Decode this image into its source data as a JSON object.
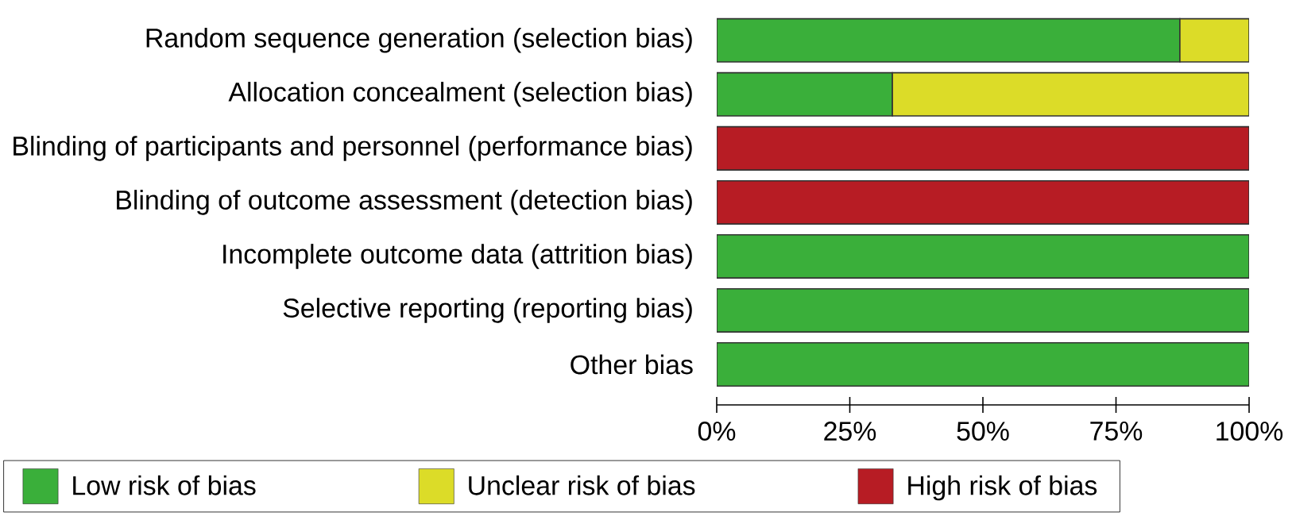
{
  "chart_data": {
    "type": "bar",
    "orientation": "horizontal",
    "stacked": true,
    "categories": [
      "Random sequence generation (selection bias)",
      "Allocation concealment (selection bias)",
      "Blinding of participants and personnel (performance bias)",
      "Blinding of outcome assessment (detection bias)",
      "Incomplete outcome data (attrition bias)",
      "Selective reporting (reporting bias)",
      "Other bias"
    ],
    "series": [
      {
        "name": "Low risk of bias",
        "color": "#3aaf3a",
        "values": [
          87,
          33,
          0,
          0,
          100,
          100,
          100
        ]
      },
      {
        "name": "Unclear risk of bias",
        "color": "#dcdc28",
        "values": [
          13,
          67,
          0,
          0,
          0,
          0,
          0
        ]
      },
      {
        "name": "High risk of bias",
        "color": "#b71c24",
        "values": [
          0,
          0,
          100,
          100,
          0,
          0,
          0
        ]
      }
    ],
    "xlim": [
      0,
      100
    ],
    "xticks": [
      {
        "value": 0,
        "label": "0%"
      },
      {
        "value": 25,
        "label": "25%"
      },
      {
        "value": 50,
        "label": "50%"
      },
      {
        "value": 75,
        "label": "75%"
      },
      {
        "value": 100,
        "label": "100%"
      }
    ],
    "grid": false,
    "legend": "bottom"
  }
}
